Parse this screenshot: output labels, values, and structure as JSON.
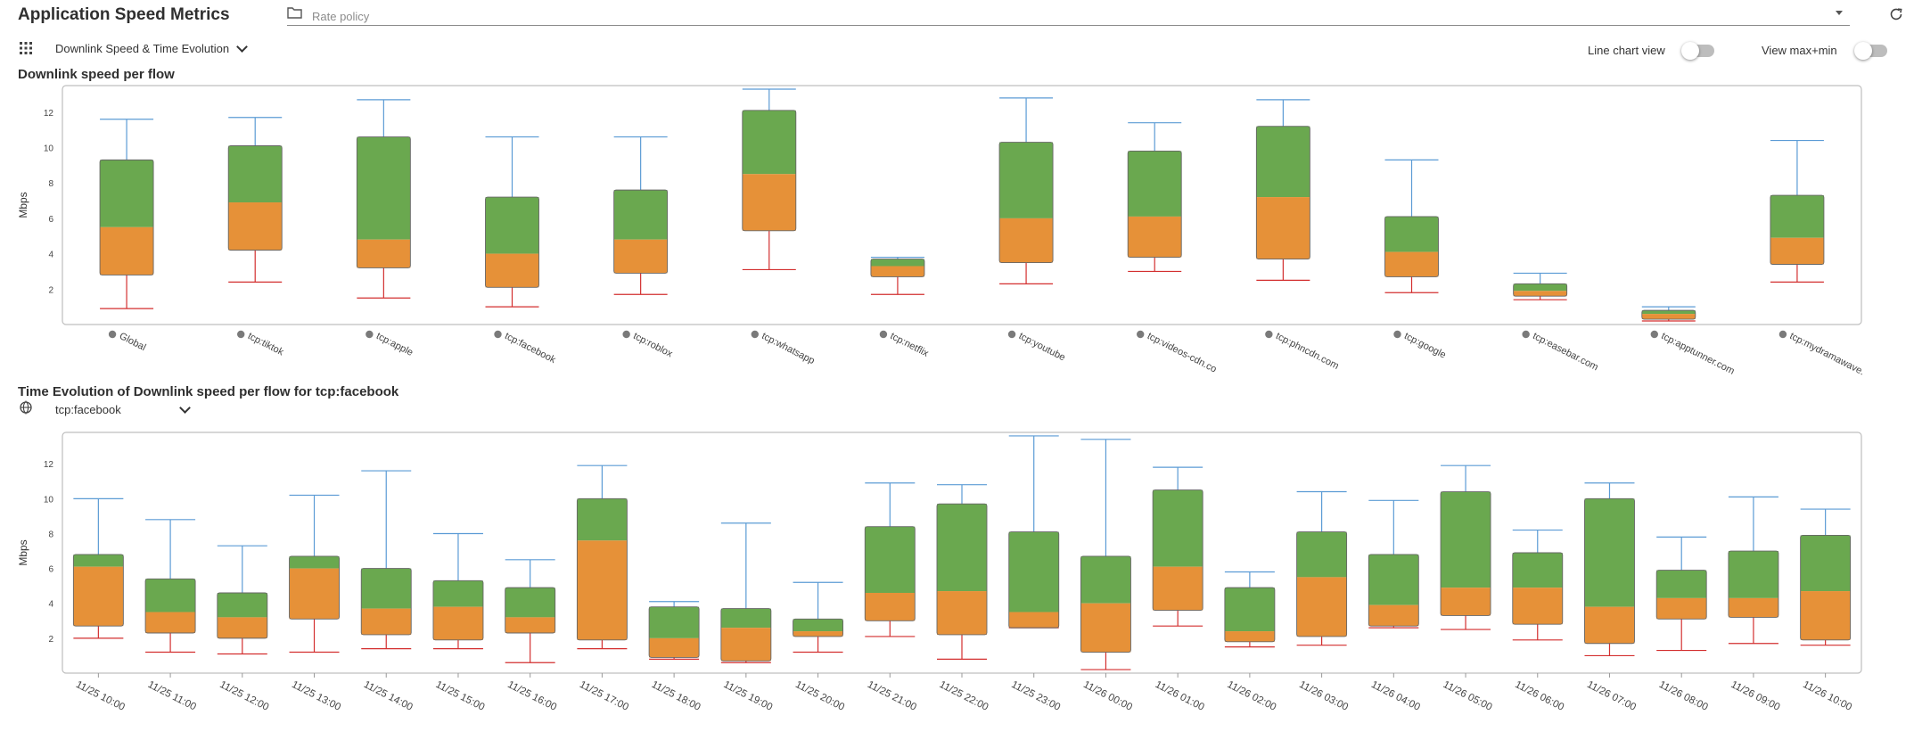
{
  "header": {
    "title": "Application Speed Metrics",
    "policy_placeholder": "Rate policy"
  },
  "toolbar": {
    "view_select": "Downlink Speed & Time Evolution",
    "line_chart_label": "Line chart view",
    "maxmin_label": "View max+min"
  },
  "section1": {
    "title": "Downlink speed per flow"
  },
  "section2": {
    "title": "Time Evolution of Downlink speed per flow for tcp:facebook",
    "flow_select": "tcp:facebook"
  },
  "colors": {
    "whisker_max": "#5b9bd5",
    "whisker_min": "#d32f2f",
    "upper_box": "#6aa84f",
    "lower_box": "#e69138",
    "grid_border": "#bfbfbf"
  },
  "chart_data": [
    {
      "type": "box",
      "title": "Downlink speed per flow",
      "ylabel": "Mbps",
      "ylim": [
        0,
        13.5
      ],
      "yticks": [
        2,
        4,
        6,
        8,
        10,
        12
      ],
      "categories": [
        "Global",
        "tcp:tiktok",
        "tcp:apple",
        "tcp:facebook",
        "tcp:roblox",
        "tcp:whatsapp",
        "tcp:netflix",
        "tcp:youtube",
        "tcp:videos-cdn.co",
        "tcp:phncdn.com",
        "tcp:google",
        "tcp:easebar.com",
        "tcp:apptunner.com",
        "tcp:mydramawave."
      ],
      "series": [
        {
          "name": "max",
          "values": [
            11.6,
            11.7,
            12.7,
            10.6,
            10.6,
            13.3,
            3.8,
            12.8,
            11.4,
            12.7,
            9.3,
            2.9,
            1.0,
            10.4
          ]
        },
        {
          "name": "q3",
          "values": [
            9.3,
            10.1,
            10.6,
            7.2,
            7.6,
            12.1,
            3.7,
            10.3,
            9.8,
            11.2,
            6.1,
            2.3,
            0.8,
            7.3
          ]
        },
        {
          "name": "median",
          "values": [
            5.5,
            6.9,
            4.8,
            4.0,
            4.8,
            8.5,
            3.3,
            6.0,
            6.1,
            7.2,
            4.1,
            1.9,
            0.6,
            4.9
          ]
        },
        {
          "name": "q1",
          "values": [
            2.8,
            4.2,
            3.2,
            2.1,
            2.9,
            5.3,
            2.7,
            3.5,
            3.8,
            3.7,
            2.7,
            1.6,
            0.3,
            3.4
          ]
        },
        {
          "name": "min",
          "values": [
            0.9,
            2.4,
            1.5,
            1.0,
            1.7,
            3.1,
            1.7,
            2.3,
            3.0,
            2.5,
            1.8,
            1.4,
            0.2,
            2.4
          ]
        }
      ]
    },
    {
      "type": "box",
      "title": "Time Evolution of Downlink speed per flow for tcp:facebook",
      "ylabel": "Mbps",
      "ylim": [
        0,
        13.8
      ],
      "yticks": [
        2,
        4,
        6,
        8,
        10,
        12
      ],
      "categories": [
        "11/25 10:00",
        "11/25 11:00",
        "11/25 12:00",
        "11/25 13:00",
        "11/25 14:00",
        "11/25 15:00",
        "11/25 16:00",
        "11/25 17:00",
        "11/25 18:00",
        "11/25 19:00",
        "11/25 20:00",
        "11/25 21:00",
        "11/25 22:00",
        "11/25 23:00",
        "11/26 00:00",
        "11/26 01:00",
        "11/26 02:00",
        "11/26 03:00",
        "11/26 04:00",
        "11/26 05:00",
        "11/26 06:00",
        "11/26 07:00",
        "11/26 08:00",
        "11/26 09:00",
        "11/26 10:00"
      ],
      "series": [
        {
          "name": "max",
          "values": [
            10.0,
            8.8,
            7.3,
            10.2,
            11.6,
            8.0,
            6.5,
            11.9,
            4.1,
            8.6,
            5.2,
            10.9,
            10.8,
            13.6,
            13.4,
            11.8,
            5.8,
            10.4,
            9.9,
            11.9,
            8.2,
            10.9,
            7.8,
            10.1,
            9.4
          ]
        },
        {
          "name": "q3",
          "values": [
            6.8,
            5.4,
            4.6,
            6.7,
            6.0,
            5.3,
            4.9,
            10.0,
            3.8,
            3.7,
            3.1,
            8.4,
            9.7,
            8.1,
            6.7,
            10.5,
            4.9,
            8.1,
            6.8,
            10.4,
            6.9,
            10.0,
            5.9,
            7.0,
            7.9
          ]
        },
        {
          "name": "median",
          "values": [
            6.1,
            3.5,
            3.2,
            6.0,
            3.7,
            3.8,
            3.2,
            7.6,
            2.0,
            2.6,
            2.4,
            4.6,
            4.7,
            3.5,
            4.0,
            6.1,
            2.4,
            5.5,
            3.9,
            4.9,
            4.9,
            3.8,
            4.3,
            4.3,
            4.7
          ]
        },
        {
          "name": "q1",
          "values": [
            2.7,
            2.3,
            2.0,
            3.1,
            2.2,
            1.9,
            2.3,
            1.9,
            0.9,
            0.7,
            2.1,
            3.0,
            2.2,
            2.6,
            1.2,
            3.6,
            1.8,
            2.1,
            2.7,
            3.3,
            2.8,
            1.7,
            3.1,
            3.2,
            1.9
          ]
        },
        {
          "name": "min",
          "values": [
            2.0,
            1.2,
            1.1,
            1.2,
            1.4,
            1.4,
            0.6,
            1.4,
            0.8,
            0.6,
            1.2,
            2.1,
            0.8,
            2.6,
            0.2,
            2.7,
            1.5,
            1.6,
            2.6,
            2.5,
            1.9,
            1.0,
            1.3,
            1.7,
            1.6
          ]
        }
      ]
    }
  ]
}
